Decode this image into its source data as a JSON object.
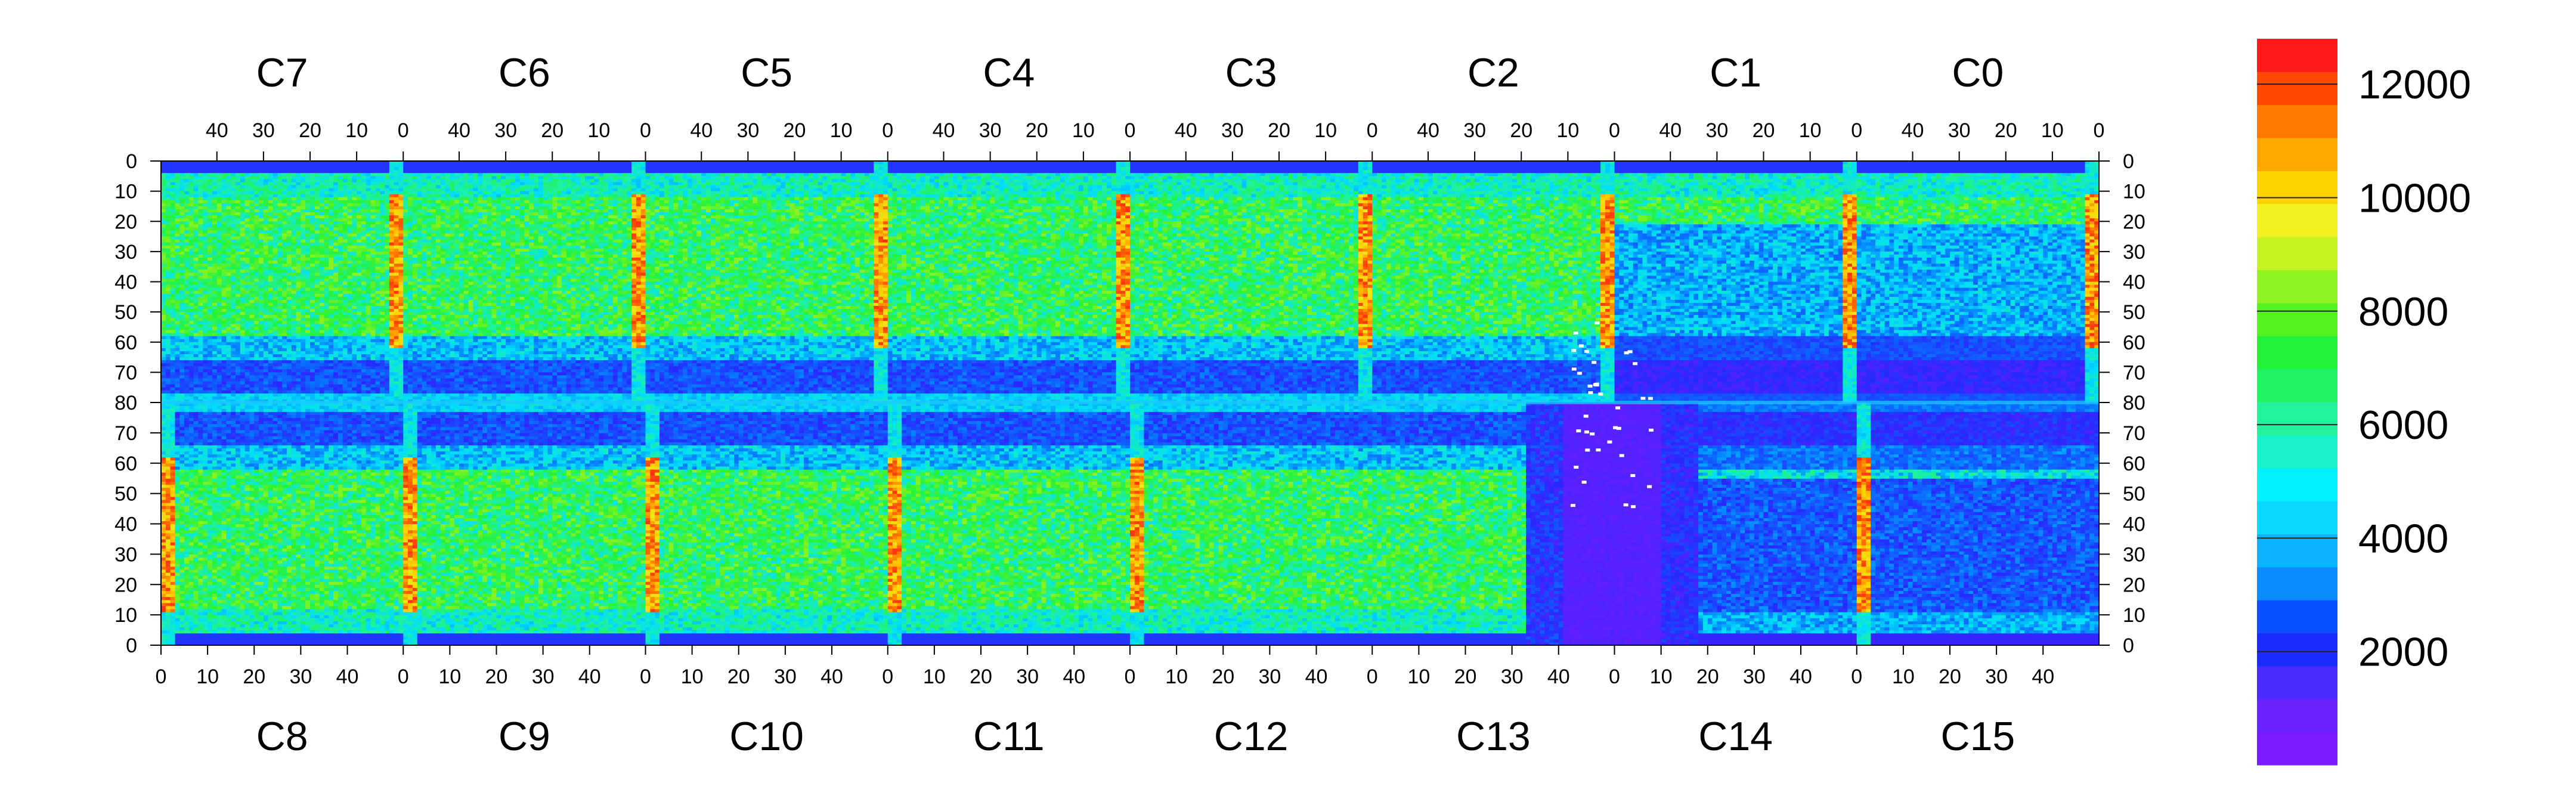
{
  "chart_data": {
    "type": "heatmap",
    "colormap": "rainbow (purple to red)",
    "z_range": [
      0,
      12800
    ],
    "colorbar": {
      "ticks": [
        2000,
        4000,
        6000,
        8000,
        10000,
        12000
      ],
      "colors": [
        "#7a1cff",
        "#6a22ff",
        "#4a2cff",
        "#1a2cff",
        "#0a50ff",
        "#0a8cff",
        "#0ab4ff",
        "#0ad8ff",
        "#00f2ff",
        "#19f2c8",
        "#22f29a",
        "#22f266",
        "#22f23a",
        "#55f222",
        "#90f222",
        "#c4f222",
        "#f0f222",
        "#ffd200",
        "#ffa800",
        "#ff7a00",
        "#ff4800",
        "#ff1a1a"
      ]
    },
    "top_chips": [
      "C7",
      "C6",
      "C5",
      "C4",
      "C3",
      "C2",
      "C1",
      "C0"
    ],
    "bottom_chips": [
      "C8",
      "C9",
      "C10",
      "C11",
      "C12",
      "C13",
      "C14",
      "C15"
    ],
    "top_x_ticks": [
      "40",
      "30",
      "20",
      "10",
      "0"
    ],
    "bottom_x_ticks": [
      "0",
      "10",
      "20",
      "30",
      "40"
    ],
    "y_ticks": [
      "0",
      "10",
      "20",
      "30",
      "40",
      "50",
      "60",
      "70",
      "80",
      "70",
      "60",
      "50",
      "40",
      "30",
      "20",
      "10",
      "0"
    ],
    "chip_columns": 52,
    "chip_rows_per_half": 80,
    "hot_columns": "chip edges (column 0 of each chip) reach 10000-12800",
    "features": {
      "dead_region": "chips C13 and C14 around the central divider read near 0 (purple) with a few scattered white pixels",
      "high_band_rows": "rows ~10-60 in each half read ~5000-8000 (green)",
      "low_band_rows": "rows ~65-80 near the center divider read ~1000-3000 (blue)"
    }
  }
}
